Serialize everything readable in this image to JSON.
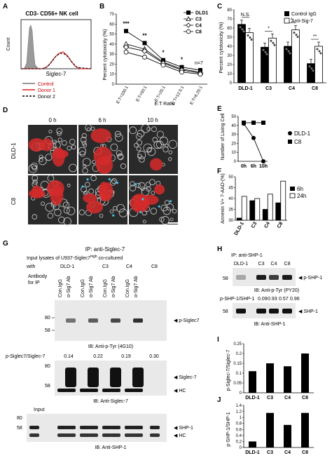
{
  "panels": {
    "a": "A",
    "b": "B",
    "c": "C",
    "d": "D",
    "e": "E",
    "f": "F",
    "g": "G",
    "h": "H",
    "i": "I",
    "j": "J"
  },
  "panel_a": {
    "title": "CD3- CD56+ NK cell",
    "xlabel": "Siglec-7",
    "legend": [
      "Control",
      "Donor 1",
      "Donor 2"
    ],
    "colors": {
      "control": "#999999",
      "donor1": "#e02020",
      "donor2": "#000000"
    }
  },
  "panel_b": {
    "ylabel": "Percent cytotoxicity (%)",
    "xlabel": "E:T Ratio",
    "n_label": "n=7",
    "sig": [
      "***",
      "**",
      "*",
      "*"
    ],
    "chart_data": {
      "type": "line",
      "categories": [
        "E:T=100:1",
        "E:T=50:1",
        "E:T=25:1",
        "E:T=12.5:1",
        "E:T=6.25:1"
      ],
      "ylim": [
        0,
        70
      ],
      "yticks": [
        0,
        10,
        20,
        30,
        40,
        50,
        60,
        70
      ],
      "series": [
        {
          "name": "DLD1",
          "marker": "square-filled",
          "values": [
            53,
            41,
            24,
            17,
            14
          ]
        },
        {
          "name": "C3",
          "marker": "triangle-open",
          "values": [
            40,
            35,
            22,
            15,
            12
          ]
        },
        {
          "name": "C4",
          "marker": "diamond-open",
          "values": [
            37,
            33,
            21,
            14,
            11
          ]
        },
        {
          "name": "C8",
          "marker": "circle-open",
          "values": [
            32,
            27,
            19,
            12,
            10
          ]
        }
      ]
    }
  },
  "panel_c": {
    "ylabel": "Percent cytotoxicity (%)",
    "legend": [
      "Control IgG",
      "Anti-Sig-7"
    ],
    "sig": [
      "N.S.",
      "*",
      "*",
      "**"
    ],
    "chart_data": {
      "type": "bar",
      "categories": [
        "DLD-1",
        "C3",
        "C4",
        "C8"
      ],
      "ylim": [
        0,
        80
      ],
      "yticks": [
        0,
        10,
        20,
        30,
        40,
        50,
        60,
        70,
        80
      ],
      "series": [
        {
          "name": "Control IgG",
          "values": [
            64,
            39,
            40,
            21
          ]
        },
        {
          "name": "Anti-Sig-7",
          "values": [
            55,
            49,
            58,
            40
          ]
        }
      ]
    }
  },
  "panel_d": {
    "times": [
      "0 h",
      "6 h",
      "10 h"
    ],
    "rows": [
      "DLD-1",
      "C8"
    ]
  },
  "panel_e": {
    "ylabel": "Number of Living Cell",
    "legend": [
      "DLD-1",
      "C8"
    ],
    "chart_data": {
      "type": "line",
      "categories": [
        "0h",
        "6h",
        "10h"
      ],
      "ylim": [
        0,
        50
      ],
      "yticks": [
        0,
        10,
        20,
        30,
        40,
        50
      ],
      "series": [
        {
          "name": "DLD-1",
          "values": [
            42,
            26,
            0
          ]
        },
        {
          "name": "C8",
          "values": [
            43,
            43,
            43
          ]
        }
      ]
    }
  },
  "panel_f": {
    "ylabel": "Annexin V+ 7-AAD-(%)",
    "legend": [
      "6h",
      "24h"
    ],
    "chart_data": {
      "type": "bar",
      "categories": [
        "DLD-1",
        "C3",
        "C4",
        "C8"
      ],
      "ylim": [
        30,
        50
      ],
      "yticks": [
        30,
        35,
        40,
        45,
        50
      ],
      "series": [
        {
          "name": "6h",
          "values": [
            31,
            39,
            35,
            38
          ]
        },
        {
          "name": "24h",
          "values": [
            41,
            40,
            42,
            48
          ]
        }
      ]
    }
  },
  "panel_g": {
    "ip": "IP: anti-Siglec-7",
    "input_title": "Input lysates of U937-Siglec7",
    "input_sup": "high",
    "input_tail": " co-cultured",
    "with": "with",
    "groups": [
      "DLD-1",
      "C3",
      "C4",
      "C8"
    ],
    "antibody": "Antibody for IP",
    "lanes": [
      "Con.IgG",
      "α-Sig7 Ab",
      "Con.IgG",
      "α-Sig7 Ab",
      "Con.IgG",
      "α-Sig7 Ab",
      "Con.IgG",
      "α-Sig7 Ab"
    ],
    "mw1": [
      "80",
      "58"
    ],
    "band1": "p-Siglec7",
    "ib1": "IB: Anti-p-Tyr (4G10)",
    "ratio_label": "p-Siglec7/Siglec-7",
    "ratios": [
      "0.14",
      "0.22",
      "0.19",
      "0.30"
    ],
    "mw2": [
      "80",
      "58"
    ],
    "band2": [
      "Siglec-7",
      "HC"
    ],
    "ib2": "IB: Anti-Siglec-7",
    "input": "Input",
    "mw3": [
      "80",
      "58"
    ],
    "band3": [
      "SHP-1",
      "HC"
    ],
    "ib3": "IB: Anti-SHP-1"
  },
  "panel_h": {
    "ip": "IP: anti-SHP-1",
    "lanes": [
      "DLD-1",
      "C3",
      "C4",
      "C8"
    ],
    "mw1": "58",
    "band1": "p-SHP-1",
    "ib1": "IB: Anti-p-Tyr (PY20)",
    "ratio_label": "p-SHP-1/SHP-1",
    "ratios": [
      "0.09",
      "0.93",
      "0.57",
      "0.96"
    ],
    "mw2": "58",
    "band2": "SHP-1",
    "ib2": "IB: Anti-SHP-1"
  },
  "panel_i": {
    "ylabel": "p-Siglec-7/Siglec-7",
    "chart_data": {
      "type": "bar",
      "categories": [
        "DLD-1",
        "C3",
        "C4",
        "C8"
      ],
      "ylim": [
        0,
        0.25
      ],
      "yticks": [
        0,
        0.05,
        0.1,
        0.15,
        0.2,
        0.25
      ],
      "yticklabels": [
        "0",
        "0.05",
        "0.1",
        "0.15",
        "0.2",
        "0.25"
      ],
      "values": [
        0.11,
        0.15,
        0.135,
        0.2
      ]
    }
  },
  "panel_j": {
    "ylabel": "p-SHP-1/SHP-1",
    "chart_data": {
      "type": "bar",
      "categories": [
        "DLD-1",
        "C3",
        "C4",
        "C8"
      ],
      "ylim": [
        0,
        1.4
      ],
      "yticks": [
        0,
        0.2,
        0.4,
        0.6,
        0.8,
        1,
        1.2,
        1.4
      ],
      "yticklabels": [
        "0",
        "0.2",
        "0.4",
        "0.6",
        "0.8",
        "1",
        "1.2",
        "1.4"
      ],
      "values": [
        0.2,
        1.15,
        0.75,
        1.15
      ]
    }
  }
}
